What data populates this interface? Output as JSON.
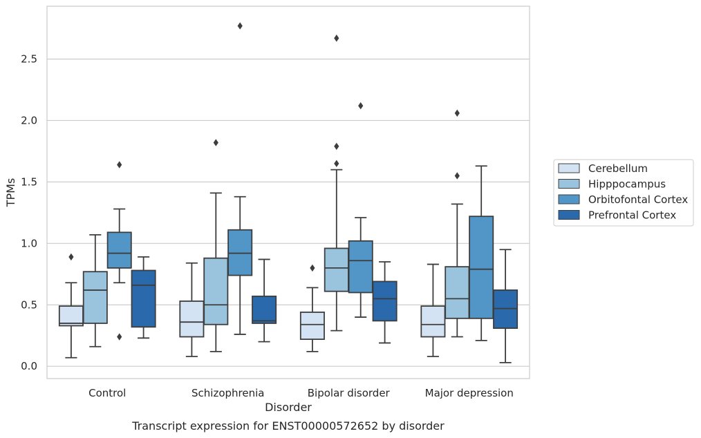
{
  "chart_data": {
    "type": "box",
    "caption": "Transcript expression for ENST00000572652 by disorder",
    "xlabel": "Disorder",
    "ylabel": "TPMs",
    "ylim": [
      -0.1,
      2.93
    ],
    "yticks": [
      0.0,
      0.5,
      1.0,
      1.5,
      2.0,
      2.5
    ],
    "ytick_labels": [
      "0.0",
      "0.5",
      "1.0",
      "1.5",
      "2.0",
      "2.5"
    ],
    "grid": true,
    "legend_position": "right",
    "categories": [
      "Control",
      "Schizophrenia",
      "Bipolar disorder",
      "Major depression"
    ],
    "series": [
      {
        "name": "Cerebellum",
        "color": "#d3e3f3",
        "boxes": [
          {
            "whisker_low": 0.07,
            "q1": 0.33,
            "median": 0.35,
            "q3": 0.49,
            "whisker_high": 0.68,
            "outliers": [
              0.89
            ]
          },
          {
            "whisker_low": 0.08,
            "q1": 0.24,
            "median": 0.36,
            "q3": 0.53,
            "whisker_high": 0.84,
            "outliers": []
          },
          {
            "whisker_low": 0.12,
            "q1": 0.22,
            "median": 0.34,
            "q3": 0.44,
            "whisker_high": 0.64,
            "outliers": [
              0.8
            ]
          },
          {
            "whisker_low": 0.08,
            "q1": 0.24,
            "median": 0.34,
            "q3": 0.49,
            "whisker_high": 0.83,
            "outliers": []
          }
        ]
      },
      {
        "name": "Hipppocampus",
        "color": "#9ac4de",
        "boxes": [
          {
            "whisker_low": 0.16,
            "q1": 0.35,
            "median": 0.62,
            "q3": 0.77,
            "whisker_high": 1.07,
            "outliers": []
          },
          {
            "whisker_low": 0.12,
            "q1": 0.34,
            "median": 0.5,
            "q3": 0.88,
            "whisker_high": 1.41,
            "outliers": [
              1.82
            ]
          },
          {
            "whisker_low": 0.29,
            "q1": 0.61,
            "median": 0.8,
            "q3": 0.96,
            "whisker_high": 1.6,
            "outliers": [
              1.65,
              1.79,
              2.67
            ]
          },
          {
            "whisker_low": 0.24,
            "q1": 0.39,
            "median": 0.55,
            "q3": 0.81,
            "whisker_high": 1.32,
            "outliers": [
              1.55,
              2.06
            ]
          }
        ]
      },
      {
        "name": "Orbitofontal Cortex",
        "color": "#5196c6",
        "boxes": [
          {
            "whisker_low": 0.68,
            "q1": 0.8,
            "median": 0.92,
            "q3": 1.09,
            "whisker_high": 1.28,
            "outliers": [
              0.24,
              1.64
            ]
          },
          {
            "whisker_low": 0.26,
            "q1": 0.74,
            "median": 0.92,
            "q3": 1.11,
            "whisker_high": 1.38,
            "outliers": [
              2.77
            ]
          },
          {
            "whisker_low": 0.4,
            "q1": 0.6,
            "median": 0.86,
            "q3": 1.02,
            "whisker_high": 1.21,
            "outliers": [
              2.12
            ]
          },
          {
            "whisker_low": 0.21,
            "q1": 0.39,
            "median": 0.79,
            "q3": 1.22,
            "whisker_high": 1.63,
            "outliers": []
          }
        ]
      },
      {
        "name": "Prefrontal Cortex",
        "color": "#2a6aac",
        "boxes": [
          {
            "whisker_low": 0.23,
            "q1": 0.32,
            "median": 0.66,
            "q3": 0.78,
            "whisker_high": 0.89,
            "outliers": []
          },
          {
            "whisker_low": 0.2,
            "q1": 0.35,
            "median": 0.37,
            "q3": 0.57,
            "whisker_high": 0.87,
            "outliers": []
          },
          {
            "whisker_low": 0.19,
            "q1": 0.37,
            "median": 0.55,
            "q3": 0.69,
            "whisker_high": 0.85,
            "outliers": []
          },
          {
            "whisker_low": 0.03,
            "q1": 0.31,
            "median": 0.47,
            "q3": 0.62,
            "whisker_high": 0.95,
            "outliers": []
          }
        ]
      }
    ]
  }
}
